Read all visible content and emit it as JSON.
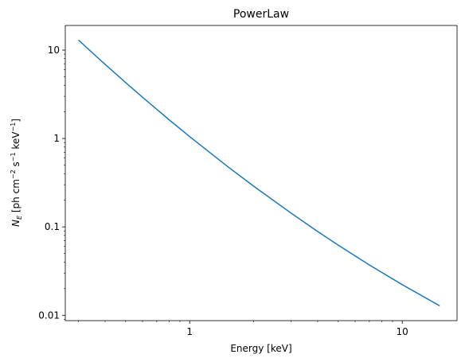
{
  "chart_data": {
    "type": "line",
    "title": "PowerLaw",
    "xlabel": "Energy [keV]",
    "ylabel": [
      "N",
      "E",
      " [ph cm",
      "−2",
      " s",
      "−1",
      " keV",
      "−1",
      "]"
    ],
    "x": [
      0.3,
      0.32,
      0.34,
      0.36,
      0.38,
      0.4,
      0.45,
      0.5,
      0.6,
      0.7,
      0.8,
      1,
      1.5,
      2,
      3,
      4,
      5,
      7,
      10,
      15
    ],
    "series": [
      {
        "color": "#1f77b4",
        "values": [
          13.0,
          11.26,
          9.86,
          8.69,
          7.72,
          6.91,
          5.37,
          4.29,
          2.93,
          2.14,
          1.63,
          1.05,
          0.487,
          0.289,
          0.143,
          0.0887,
          0.0622,
          0.0371,
          0.0222,
          0.0128
        ]
      }
    ],
    "xlim": [
      0.26,
      18.1
    ],
    "ylim": [
      0.0087,
      19
    ],
    "xticks": [
      1,
      10
    ],
    "yticks": [
      0.01,
      0.1,
      1,
      10
    ],
    "xscale": "log",
    "yscale": "log",
    "grid": false
  }
}
